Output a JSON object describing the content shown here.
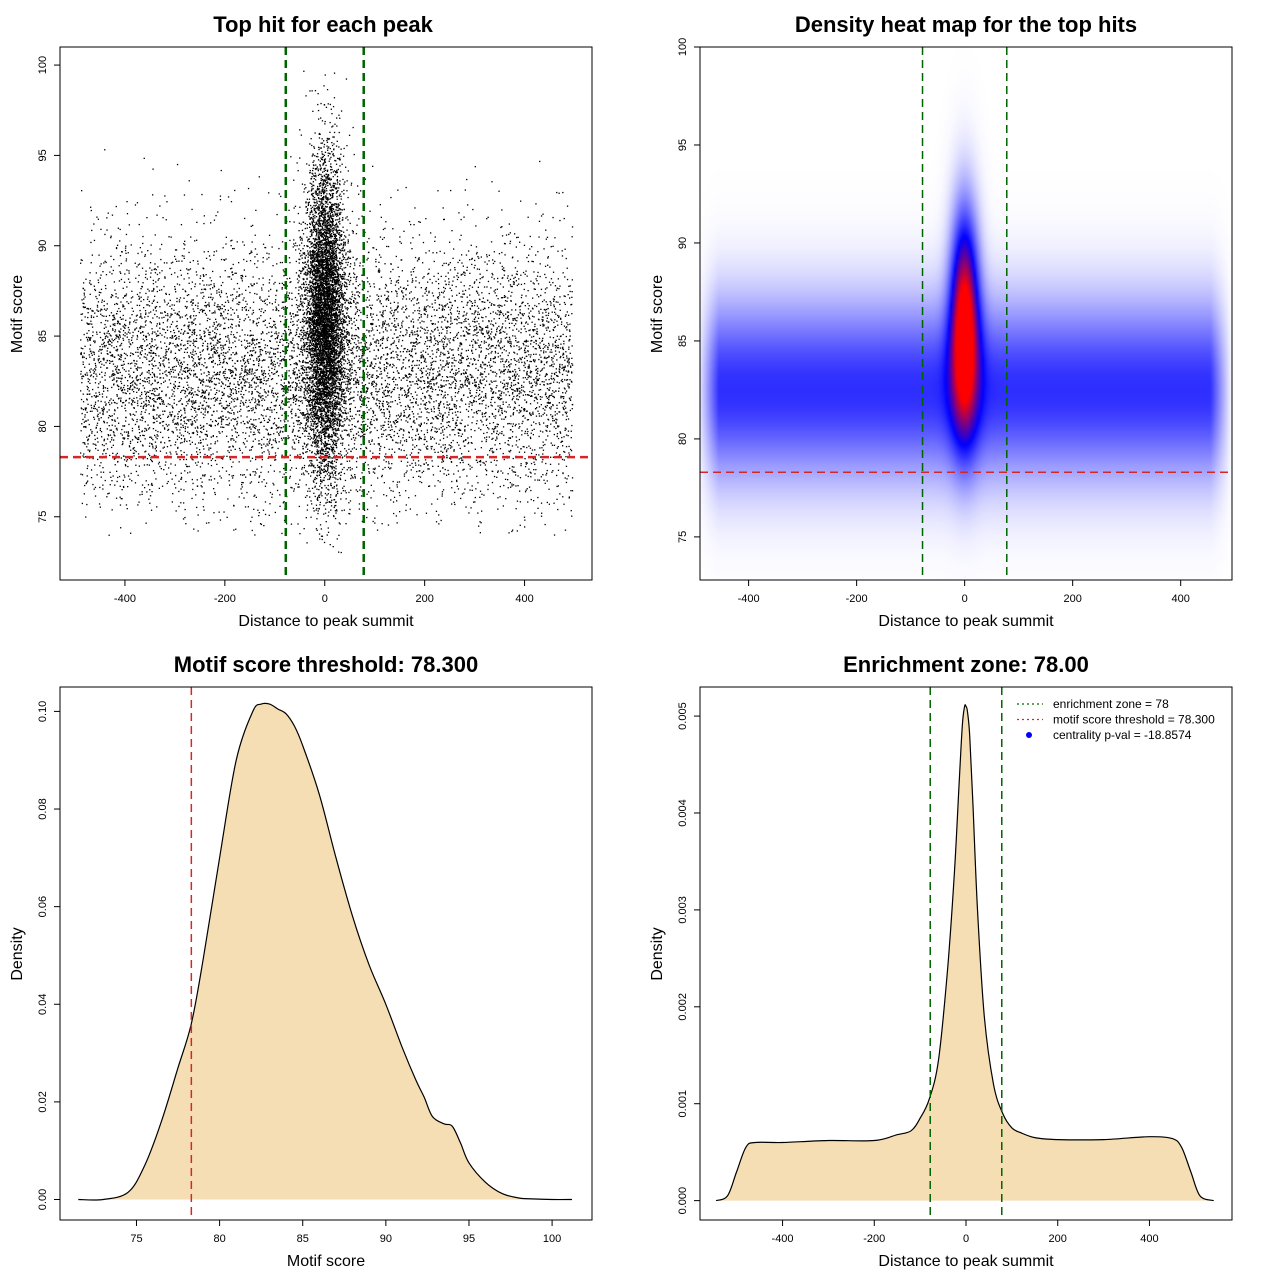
{
  "chart_data": [
    {
      "type": "scatter",
      "title": "Top hit for each peak",
      "xlabel": "Distance to peak summit",
      "ylabel": "Motif score",
      "xlim": [
        -530,
        535
      ],
      "ylim": [
        71.5,
        101
      ],
      "xticks": [
        "-400",
        "-200",
        "0",
        "200",
        "400"
      ],
      "yticks": [
        "75",
        "80",
        "85",
        "90",
        "95",
        "100"
      ],
      "point_color": "#000000",
      "background": {
        "x_range": [
          -490,
          495
        ],
        "y_mean": 83,
        "y_sd": 3.6,
        "y_range": [
          74,
          95.5
        ]
      },
      "central_cluster": {
        "x_mean": 0,
        "x_sd": 20,
        "y_mean": 86,
        "y_sd": 4.3,
        "y_range": [
          73,
          100
        ]
      },
      "vlines": [
        {
          "x": -78,
          "color": "#006400",
          "style": "dashed"
        },
        {
          "x": 78,
          "color": "#006400",
          "style": "dashed"
        }
      ],
      "hlines": [
        {
          "y": 78.3,
          "color": "#d62728",
          "style": "dashed"
        }
      ]
    },
    {
      "type": "heatmap",
      "title": "Density heat map for the top hits",
      "xlabel": "Distance to peak summit",
      "ylabel": "Motif score",
      "xlim": [
        -490,
        495
      ],
      "ylim": [
        72.8,
        100
      ],
      "xticks": [
        "-400",
        "-200",
        "0",
        "200",
        "400"
      ],
      "yticks": [
        "75",
        "80",
        "85",
        "90",
        "95",
        "100"
      ],
      "color_scale": [
        "#ffffff",
        "#0000ff",
        "#ff0000"
      ],
      "components": [
        {
          "label": "flanks",
          "x_range": [
            -495,
            495
          ],
          "y_mean": 82.5,
          "y_sd": 3.2,
          "weight": 0.45
        },
        {
          "label": "center",
          "x_mean": 0,
          "x_sd": 18,
          "y_mean": 86,
          "y_sd": 3.8,
          "weight": 1.0
        }
      ],
      "vlines": [
        {
          "x": -78,
          "color": "#006400",
          "style": "dashed"
        },
        {
          "x": 78,
          "color": "#006400",
          "style": "dashed"
        }
      ],
      "hlines": [
        {
          "y": 78.3,
          "color": "#d62728",
          "style": "dashed"
        }
      ]
    },
    {
      "type": "area",
      "title": "Motif score threshold: 78.300",
      "xlabel": "Motif score",
      "ylabel": "Density",
      "xlim": [
        70.4,
        102.4
      ],
      "ylim": [
        -0.0042,
        0.105
      ],
      "xticks": [
        "75",
        "80",
        "85",
        "90",
        "95",
        "100"
      ],
      "yticks": [
        "0.00",
        "0.02",
        "0.04",
        "0.06",
        "0.08",
        "0.10"
      ],
      "fill": "#f5deb3",
      "stroke": "#000000",
      "x": [
        71.5,
        73.0,
        74.5,
        75.5,
        76.5,
        77.5,
        78.3,
        79.0,
        80.0,
        81.0,
        82.0,
        82.5,
        83.0,
        83.5,
        84.0,
        84.5,
        85.0,
        86.0,
        87.0,
        88.0,
        89.0,
        90.0,
        91.0,
        91.8,
        92.3,
        92.8,
        93.5,
        94.0,
        94.5,
        95.0,
        96.0,
        97.0,
        98.0,
        99.0,
        100.0,
        101.2
      ],
      "y": [
        0.0,
        0.0,
        0.0015,
        0.007,
        0.016,
        0.027,
        0.036,
        0.049,
        0.07,
        0.09,
        0.1,
        0.1015,
        0.1015,
        0.1005,
        0.0995,
        0.097,
        0.093,
        0.083,
        0.07,
        0.058,
        0.048,
        0.04,
        0.031,
        0.0245,
        0.021,
        0.017,
        0.0155,
        0.015,
        0.0115,
        0.0075,
        0.0035,
        0.0012,
        0.0003,
        0.0001,
        0.0,
        0.0
      ],
      "vlines": [
        {
          "x": 78.3,
          "color": "#d62728",
          "style": "dashed"
        }
      ]
    },
    {
      "type": "area",
      "title": "Enrichment zone: 78.00",
      "xlabel": "Distance to peak summit",
      "ylabel": "Density",
      "xlim": [
        -580,
        580
      ],
      "ylim": [
        -0.0002,
        0.0053
      ],
      "xticks": [
        "-400",
        "-200",
        "0",
        "200",
        "400"
      ],
      "yticks": [
        "0.000",
        "0.001",
        "0.002",
        "0.003",
        "0.004",
        "0.005"
      ],
      "fill": "#f5deb3",
      "stroke": "#000000",
      "x": [
        -545,
        -520,
        -500,
        -480,
        -460,
        -400,
        -300,
        -200,
        -150,
        -120,
        -100,
        -80,
        -60,
        -40,
        -25,
        -15,
        -8,
        -3,
        0,
        3,
        8,
        15,
        25,
        40,
        60,
        80,
        100,
        120,
        150,
        200,
        300,
        400,
        450,
        470,
        490,
        510,
        540
      ],
      "y": [
        0.0,
        5e-05,
        0.0003,
        0.00055,
        0.0006,
        0.0006,
        0.00062,
        0.00062,
        0.00068,
        0.00072,
        0.00085,
        0.00105,
        0.00145,
        0.0024,
        0.0034,
        0.0043,
        0.0049,
        0.0051,
        0.0051,
        0.00505,
        0.0048,
        0.0041,
        0.003,
        0.0019,
        0.0012,
        0.0009,
        0.00075,
        0.0007,
        0.00065,
        0.00063,
        0.00063,
        0.00066,
        0.00064,
        0.00055,
        0.0003,
        5e-05,
        0.0
      ],
      "vlines": [
        {
          "x": -78,
          "color": "#006400",
          "style": "dashed"
        },
        {
          "x": 78,
          "color": "#006400",
          "style": "dashed"
        }
      ],
      "legend": {
        "position": "top-right",
        "entries": [
          {
            "label": "enrichment zone = 78",
            "color": "#006400",
            "kind": "line-dotted"
          },
          {
            "label": "motif score threshold = 78.300",
            "color": "#d62728",
            "kind": "line-dotted"
          },
          {
            "label": "centrality p-val = -18.8574",
            "color": "#0000ff",
            "kind": "point"
          }
        ]
      }
    }
  ]
}
